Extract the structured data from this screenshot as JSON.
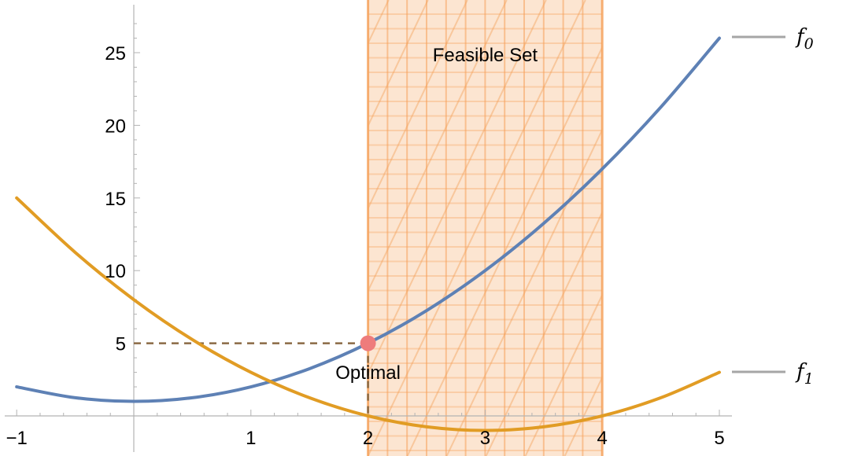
{
  "chart_data": {
    "type": "line",
    "title": "",
    "xlabel": "",
    "ylabel": "",
    "xlim": [
      -1,
      5
    ],
    "ylim": [
      0,
      27
    ],
    "x_ticks": [
      {
        "value": -1,
        "label": "−1"
      },
      {
        "value": 1,
        "label": "1"
      },
      {
        "value": 2,
        "label": "2"
      },
      {
        "value": 3,
        "label": "3"
      },
      {
        "value": 4,
        "label": "4"
      },
      {
        "value": 5,
        "label": "5"
      }
    ],
    "y_ticks": [
      {
        "value": 5,
        "label": "5"
      },
      {
        "value": 10,
        "label": "10"
      },
      {
        "value": 15,
        "label": "15"
      },
      {
        "value": 20,
        "label": "20"
      },
      {
        "value": 25,
        "label": "25"
      }
    ],
    "grid": false,
    "legend_position": "right",
    "series": [
      {
        "name": "f0",
        "legend_base": "f",
        "legend_sub": "0",
        "color": "#5e81b5",
        "x": [
          -1,
          -0.5,
          0,
          0.5,
          1,
          1.5,
          2,
          2.5,
          3,
          3.5,
          4,
          4.5,
          5
        ],
        "y": [
          2,
          1.25,
          1,
          1.25,
          2,
          3.25,
          5,
          7.25,
          10,
          13.25,
          17,
          21.25,
          26
        ]
      },
      {
        "name": "f1",
        "legend_base": "f",
        "legend_sub": "1",
        "color": "#e19c24",
        "x": [
          -1,
          -0.5,
          0,
          0.5,
          1,
          1.5,
          2,
          2.5,
          3,
          3.5,
          4,
          4.5,
          5
        ],
        "y": [
          15,
          11.25,
          8,
          5.25,
          3,
          1.25,
          0,
          -0.75,
          -1,
          -0.75,
          0,
          1.25,
          3
        ]
      }
    ],
    "feasible_region": {
      "label": "Feasible Set",
      "x_range": [
        2,
        4
      ],
      "color": "#f5a15a"
    },
    "optimal_point": {
      "label": "Optimal",
      "x": 2,
      "y": 5,
      "color": "#ee7c7c"
    },
    "dashed_guide_color": "#8b6a45",
    "axis_color": "#b3b3b3",
    "legend_line_color": "#a6a6a6"
  }
}
